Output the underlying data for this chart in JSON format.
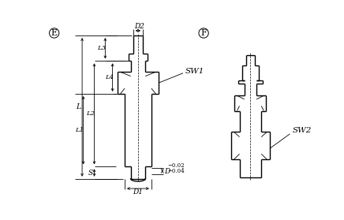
{
  "bg_color": "#ffffff",
  "line_color": "#000000",
  "fig_width": 4.36,
  "fig_height": 2.79,
  "dpi": 100,
  "label_E": "E",
  "label_F": "F",
  "label_SW1": "SW1",
  "label_SW2": "SW2",
  "label_D2": "D2",
  "label_D1": "D1",
  "label_D_tol": "D",
  "label_tol1": "−0.02",
  "label_tol2": "−0.04",
  "label_L": "L",
  "label_L1": "L1",
  "label_L2": "L2",
  "label_L3": "L3",
  "label_L4": "L4",
  "label_S": "S"
}
